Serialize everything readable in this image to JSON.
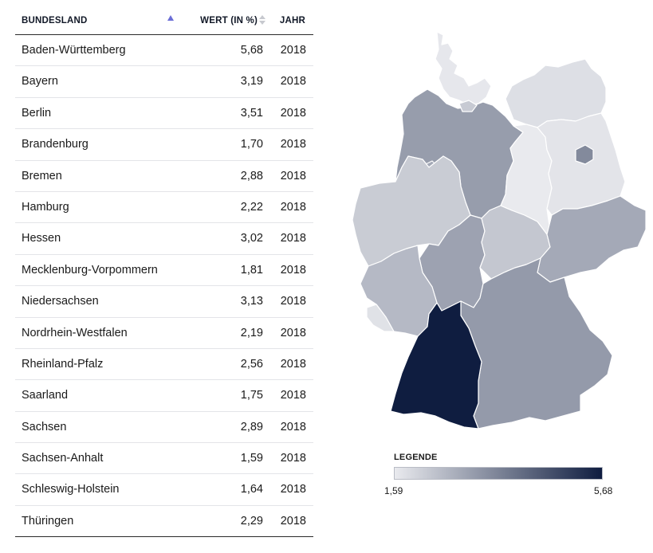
{
  "table": {
    "headers": {
      "name": "BUNDESLAND",
      "value": "WERT (IN %)",
      "year": "JAHR"
    },
    "rows": [
      {
        "name": "Baden-Württemberg",
        "value": "5,68",
        "year": "2018"
      },
      {
        "name": "Bayern",
        "value": "3,19",
        "year": "2018"
      },
      {
        "name": "Berlin",
        "value": "3,51",
        "year": "2018"
      },
      {
        "name": "Brandenburg",
        "value": "1,70",
        "year": "2018"
      },
      {
        "name": "Bremen",
        "value": "2,88",
        "year": "2018"
      },
      {
        "name": "Hamburg",
        "value": "2,22",
        "year": "2018"
      },
      {
        "name": "Hessen",
        "value": "3,02",
        "year": "2018"
      },
      {
        "name": "Mecklenburg-Vorpommern",
        "value": "1,81",
        "year": "2018"
      },
      {
        "name": "Niedersachsen",
        "value": "3,13",
        "year": "2018"
      },
      {
        "name": "Nordrhein-Westfalen",
        "value": "2,19",
        "year": "2018"
      },
      {
        "name": "Rheinland-Pfalz",
        "value": "2,56",
        "year": "2018"
      },
      {
        "name": "Saarland",
        "value": "1,75",
        "year": "2018"
      },
      {
        "name": "Sachsen",
        "value": "2,89",
        "year": "2018"
      },
      {
        "name": "Sachsen-Anhalt",
        "value": "1,59",
        "year": "2018"
      },
      {
        "name": "Schleswig-Holstein",
        "value": "1,64",
        "year": "2018"
      },
      {
        "name": "Thüringen",
        "value": "2,29",
        "year": "2018"
      }
    ]
  },
  "legend": {
    "title": "LEGENDE",
    "min": "1,59",
    "max": "5,68"
  },
  "colors": {
    "low": "#e9eaee",
    "high": "#0f1d40"
  }
}
